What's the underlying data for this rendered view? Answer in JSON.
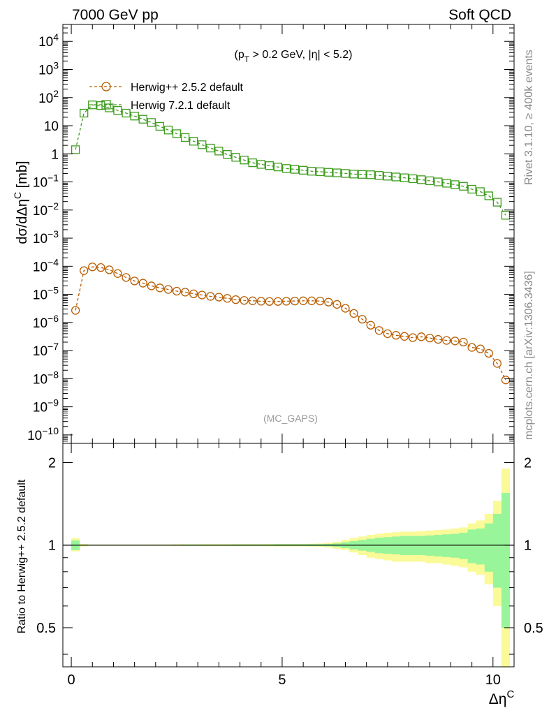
{
  "header": {
    "left": "7000 GeV pp",
    "right": "Soft QCD"
  },
  "side_labels": {
    "rivet": "Rivet 3.1.10, ≥ 400k events",
    "mcplots": "mcplots.cern.ch [arXiv:1306.3436]"
  },
  "main_plot": {
    "cut_label": "(p_T > 0.2 GeV, |η| < 5.2)",
    "ylabel": "dσ/dΔη^C [mb]",
    "analysis_tag": "(MC_GAPS)"
  },
  "ratio_plot": {
    "ylabel": "Ratio to Herwig++ 2.5.2 default"
  },
  "x_axis": {
    "label": "Δη^C"
  },
  "legend": [
    {
      "label": "Herwig++ 2.5.2 default",
      "color": "#b85c00",
      "marker": "circle",
      "line": "dashed"
    },
    {
      "label": "Herwig 7.2.1 default",
      "color": "#3c9c1c",
      "marker": "square",
      "line": "dashed"
    }
  ],
  "chart_data": [
    {
      "type": "line",
      "panel": "main",
      "xlim": [
        -0.2,
        10.5
      ],
      "ylim": [
        5e-11,
        40000.0
      ],
      "yscale": "log",
      "x_ticks": [
        0,
        5,
        10
      ],
      "y_tick_labels": [
        "10^-10",
        "10^-9",
        "10^-8",
        "10^-7",
        "10^-6",
        "10^-5",
        "10^-4",
        "10^-3",
        "10^-2",
        "10^-1",
        "1",
        "10",
        "10^2",
        "10^3",
        "10^4"
      ],
      "x": [
        0.1,
        0.3,
        0.5,
        0.7,
        0.9,
        1.1,
        1.3,
        1.5,
        1.7,
        1.9,
        2.1,
        2.3,
        2.5,
        2.7,
        2.9,
        3.1,
        3.3,
        3.5,
        3.7,
        3.9,
        4.1,
        4.3,
        4.5,
        4.7,
        4.9,
        5.1,
        5.3,
        5.5,
        5.7,
        5.9,
        6.1,
        6.3,
        6.5,
        6.7,
        6.9,
        7.1,
        7.3,
        7.5,
        7.7,
        7.9,
        8.1,
        8.3,
        8.5,
        8.7,
        8.9,
        9.1,
        9.3,
        9.5,
        9.7,
        9.9,
        10.1,
        10.3
      ],
      "series": [
        {
          "name": "Herwig++ 2.5.2 default",
          "color": "#b85c00",
          "values": [
            2.7e-06,
            7e-05,
            9.5e-05,
            9e-05,
            7.5e-05,
            5.5e-05,
            4e-05,
            3e-05,
            2.5e-05,
            2e-05,
            1.7e-05,
            1.5e-05,
            1.3e-05,
            1.2e-05,
            1.05e-05,
            9.5e-06,
            8.5e-06,
            8e-06,
            7.2e-06,
            6.5e-06,
            6.1e-06,
            5.9e-06,
            5.7e-06,
            5.6e-06,
            5.6e-06,
            5.7e-06,
            5.8e-06,
            5.9e-06,
            5.9e-06,
            5.8e-06,
            5.3e-06,
            4.4e-06,
            3.2e-06,
            2.1e-06,
            1.3e-06,
            8e-07,
            5.2e-07,
            4e-07,
            3.5e-07,
            3.2e-07,
            2.9e-07,
            3.1e-07,
            2.8e-07,
            2.5e-07,
            2.3e-07,
            2.2e-07,
            2e-07,
            1.3e-07,
            1.15e-07,
            8e-08,
            3.5e-08,
            9e-09
          ]
        },
        {
          "name": "Herwig 7.2.1 default",
          "color": "#3c9c1c",
          "values": [
            1.4,
            28,
            55,
            52,
            43,
            35,
            28,
            22,
            17,
            13,
            9.5,
            7,
            5.2,
            3.8,
            2.8,
            2.1,
            1.6,
            1.25,
            0.95,
            0.75,
            0.6,
            0.48,
            0.42,
            0.38,
            0.34,
            0.3,
            0.28,
            0.26,
            0.24,
            0.23,
            0.22,
            0.21,
            0.2,
            0.19,
            0.185,
            0.18,
            0.17,
            0.16,
            0.15,
            0.14,
            0.13,
            0.12,
            0.11,
            0.1,
            0.09,
            0.08,
            0.07,
            0.055,
            0.045,
            0.032,
            0.019,
            0.0065
          ]
        }
      ]
    },
    {
      "type": "area",
      "panel": "ratio",
      "xlim": [
        -0.2,
        10.5
      ],
      "ylim": [
        0.36,
        2.35
      ],
      "yscale": "log",
      "y_ticks": [
        0.5,
        1,
        2
      ],
      "x_ticks": [
        0,
        5,
        10
      ],
      "reference_line": 1,
      "bands": [
        {
          "name": "stat",
          "color": "#99f599",
          "low": [
            0.96,
            0.995,
            0.997,
            0.997,
            0.997,
            0.997,
            0.997,
            0.997,
            0.997,
            0.997,
            0.996,
            0.996,
            0.996,
            0.995,
            0.995,
            0.995,
            0.995,
            0.995,
            0.995,
            0.994,
            0.994,
            0.994,
            0.994,
            0.994,
            0.993,
            0.993,
            0.993,
            0.993,
            0.992,
            0.992,
            0.99,
            0.985,
            0.975,
            0.965,
            0.955,
            0.945,
            0.935,
            0.93,
            0.925,
            0.92,
            0.92,
            0.92,
            0.915,
            0.91,
            0.905,
            0.9,
            0.89,
            0.86,
            0.85,
            0.8,
            0.7,
            0.5
          ],
          "high": [
            1.04,
            1.005,
            1.003,
            1.003,
            1.003,
            1.003,
            1.003,
            1.003,
            1.003,
            1.003,
            1.004,
            1.004,
            1.004,
            1.005,
            1.005,
            1.005,
            1.005,
            1.005,
            1.005,
            1.006,
            1.006,
            1.006,
            1.006,
            1.006,
            1.007,
            1.007,
            1.007,
            1.007,
            1.008,
            1.008,
            1.01,
            1.015,
            1.025,
            1.035,
            1.045,
            1.055,
            1.065,
            1.07,
            1.075,
            1.08,
            1.08,
            1.08,
            1.085,
            1.09,
            1.095,
            1.1,
            1.11,
            1.14,
            1.15,
            1.2,
            1.3,
            1.55
          ]
        },
        {
          "name": "total",
          "color": "#fafa99",
          "low": [
            0.95,
            0.99,
            0.995,
            0.995,
            0.995,
            0.995,
            0.995,
            0.995,
            0.995,
            0.995,
            0.994,
            0.994,
            0.993,
            0.993,
            0.993,
            0.992,
            0.992,
            0.992,
            0.992,
            0.991,
            0.991,
            0.991,
            0.991,
            0.99,
            0.99,
            0.99,
            0.99,
            0.99,
            0.988,
            0.986,
            0.98,
            0.97,
            0.96,
            0.94,
            0.92,
            0.9,
            0.89,
            0.88,
            0.87,
            0.87,
            0.87,
            0.87,
            0.86,
            0.86,
            0.85,
            0.84,
            0.83,
            0.8,
            0.78,
            0.72,
            0.6,
            0.36
          ],
          "high": [
            1.06,
            1.01,
            1.005,
            1.005,
            1.005,
            1.005,
            1.005,
            1.005,
            1.005,
            1.005,
            1.006,
            1.006,
            1.007,
            1.007,
            1.007,
            1.008,
            1.008,
            1.008,
            1.008,
            1.009,
            1.009,
            1.009,
            1.009,
            1.01,
            1.01,
            1.01,
            1.01,
            1.01,
            1.012,
            1.014,
            1.02,
            1.03,
            1.045,
            1.06,
            1.075,
            1.09,
            1.1,
            1.11,
            1.115,
            1.12,
            1.12,
            1.125,
            1.13,
            1.135,
            1.14,
            1.15,
            1.16,
            1.2,
            1.23,
            1.3,
            1.45,
            1.9
          ]
        }
      ]
    }
  ]
}
